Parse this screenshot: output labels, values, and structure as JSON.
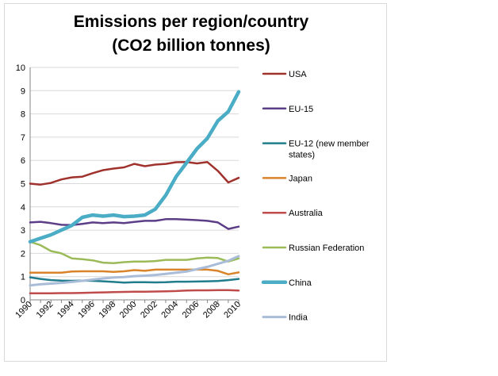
{
  "chart_data": {
    "type": "line",
    "title_lines": [
      "Emissions per region/country",
      "(CO2 billion tonnes)"
    ],
    "xlabel": "",
    "ylabel": "",
    "ylim": [
      0,
      10
    ],
    "yticks": [
      "0",
      "1",
      "2",
      "3",
      "4",
      "5",
      "6",
      "7",
      "8",
      "9",
      "10"
    ],
    "xticks": [
      "1990",
      "1992",
      "1994",
      "1996",
      "1998",
      "2000",
      "2002",
      "2004",
      "2006",
      "2008",
      "2010"
    ],
    "x": [
      1990,
      1991,
      1992,
      1993,
      1994,
      1995,
      1996,
      1997,
      1998,
      1999,
      2000,
      2001,
      2002,
      2003,
      2004,
      2005,
      2006,
      2007,
      2008,
      2009,
      2010
    ],
    "grid": "horizontal",
    "legend_position": "right",
    "series": [
      {
        "name": "USA",
        "color": "#a0322e",
        "width": 2.5,
        "values": [
          5.0,
          4.96,
          5.03,
          5.18,
          5.27,
          5.3,
          5.45,
          5.58,
          5.65,
          5.7,
          5.85,
          5.75,
          5.82,
          5.85,
          5.92,
          5.93,
          5.87,
          5.93,
          5.55,
          5.05,
          5.25
        ]
      },
      {
        "name": "EU-15",
        "color": "#5b3e87",
        "width": 2.5,
        "values": [
          3.33,
          3.36,
          3.3,
          3.23,
          3.22,
          3.27,
          3.33,
          3.3,
          3.33,
          3.3,
          3.35,
          3.4,
          3.4,
          3.47,
          3.47,
          3.45,
          3.43,
          3.4,
          3.33,
          3.05,
          3.15
        ]
      },
      {
        "name": "EU-12 (new member states)",
        "color": "#217c8c",
        "width": 2.5,
        "values": [
          0.97,
          0.9,
          0.85,
          0.83,
          0.82,
          0.83,
          0.82,
          0.8,
          0.77,
          0.74,
          0.76,
          0.76,
          0.75,
          0.76,
          0.78,
          0.78,
          0.79,
          0.8,
          0.81,
          0.85,
          0.9
        ]
      },
      {
        "name": "Japan",
        "color": "#d9842a",
        "width": 2.5,
        "values": [
          1.17,
          1.17,
          1.17,
          1.17,
          1.22,
          1.23,
          1.23,
          1.23,
          1.2,
          1.23,
          1.28,
          1.25,
          1.3,
          1.3,
          1.3,
          1.3,
          1.3,
          1.3,
          1.25,
          1.1,
          1.18
        ]
      },
      {
        "name": "Australia",
        "color": "#bf4b4b",
        "width": 2.5,
        "values": [
          0.28,
          0.28,
          0.28,
          0.29,
          0.29,
          0.3,
          0.31,
          0.32,
          0.33,
          0.34,
          0.35,
          0.35,
          0.36,
          0.37,
          0.38,
          0.4,
          0.41,
          0.41,
          0.42,
          0.42,
          0.4
        ]
      },
      {
        "name": "Russian Federation",
        "color": "#9bbb59",
        "width": 2.5,
        "values": [
          2.5,
          2.35,
          2.1,
          2.0,
          1.78,
          1.75,
          1.7,
          1.6,
          1.58,
          1.62,
          1.65,
          1.65,
          1.67,
          1.72,
          1.72,
          1.72,
          1.78,
          1.82,
          1.8,
          1.65,
          1.78
        ]
      },
      {
        "name": "China",
        "color": "#4bacc6",
        "width": 4.5,
        "values": [
          2.5,
          2.65,
          2.8,
          3.0,
          3.2,
          3.55,
          3.65,
          3.6,
          3.65,
          3.58,
          3.6,
          3.65,
          3.9,
          4.5,
          5.3,
          5.9,
          6.5,
          6.95,
          7.7,
          8.1,
          8.95
        ]
      },
      {
        "name": "India",
        "color": "#a9bcd8",
        "width": 3,
        "values": [
          0.62,
          0.67,
          0.7,
          0.73,
          0.77,
          0.82,
          0.87,
          0.92,
          0.96,
          0.98,
          1.02,
          1.04,
          1.07,
          1.12,
          1.17,
          1.22,
          1.32,
          1.42,
          1.55,
          1.68,
          1.88
        ]
      }
    ]
  }
}
